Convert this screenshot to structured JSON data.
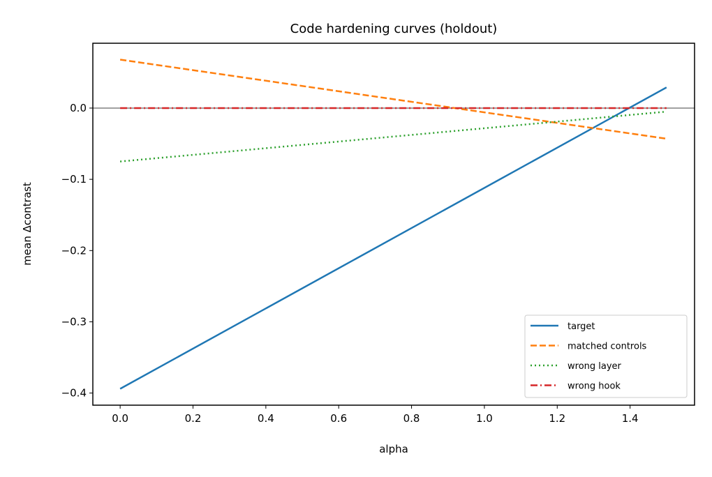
{
  "chart_data": {
    "type": "line",
    "title": "Code hardening curves (holdout)",
    "xlabel": "alpha",
    "ylabel": "mean Δcontrast",
    "xlim": [
      -0.075,
      1.577
    ],
    "ylim": [
      -0.417,
      0.091
    ],
    "xticks": [
      0.0,
      0.2,
      0.4,
      0.6,
      0.8,
      1.0,
      1.2,
      1.4
    ],
    "xtick_labels": [
      "0.0",
      "0.2",
      "0.4",
      "0.6",
      "0.8",
      "1.0",
      "1.2",
      "1.4"
    ],
    "yticks": [
      0.0,
      -0.1,
      -0.2,
      -0.3,
      -0.4
    ],
    "ytick_labels": [
      "0.0",
      "−0.1",
      "−0.2",
      "−0.3",
      "−0.4"
    ],
    "grid": false,
    "reference_line": {
      "y": 0,
      "color": "#808080"
    },
    "legend_position": "lower-right",
    "series": [
      {
        "name": "target",
        "color": "#1f77b4",
        "style": "solid",
        "x": [
          0.0,
          1.5
        ],
        "y": [
          -0.394,
          0.029
        ]
      },
      {
        "name": "matched controls",
        "color": "#ff7f0e",
        "style": "dashed",
        "x": [
          0.0,
          1.5
        ],
        "y": [
          0.068,
          -0.043
        ]
      },
      {
        "name": "wrong layer",
        "color": "#2ca02c",
        "style": "dotted",
        "x": [
          0.0,
          1.5
        ],
        "y": [
          -0.075,
          -0.005
        ]
      },
      {
        "name": "wrong hook",
        "color": "#d62728",
        "style": "dashdot",
        "x": [
          0.0,
          1.5
        ],
        "y": [
          0.0,
          0.0
        ]
      }
    ]
  }
}
